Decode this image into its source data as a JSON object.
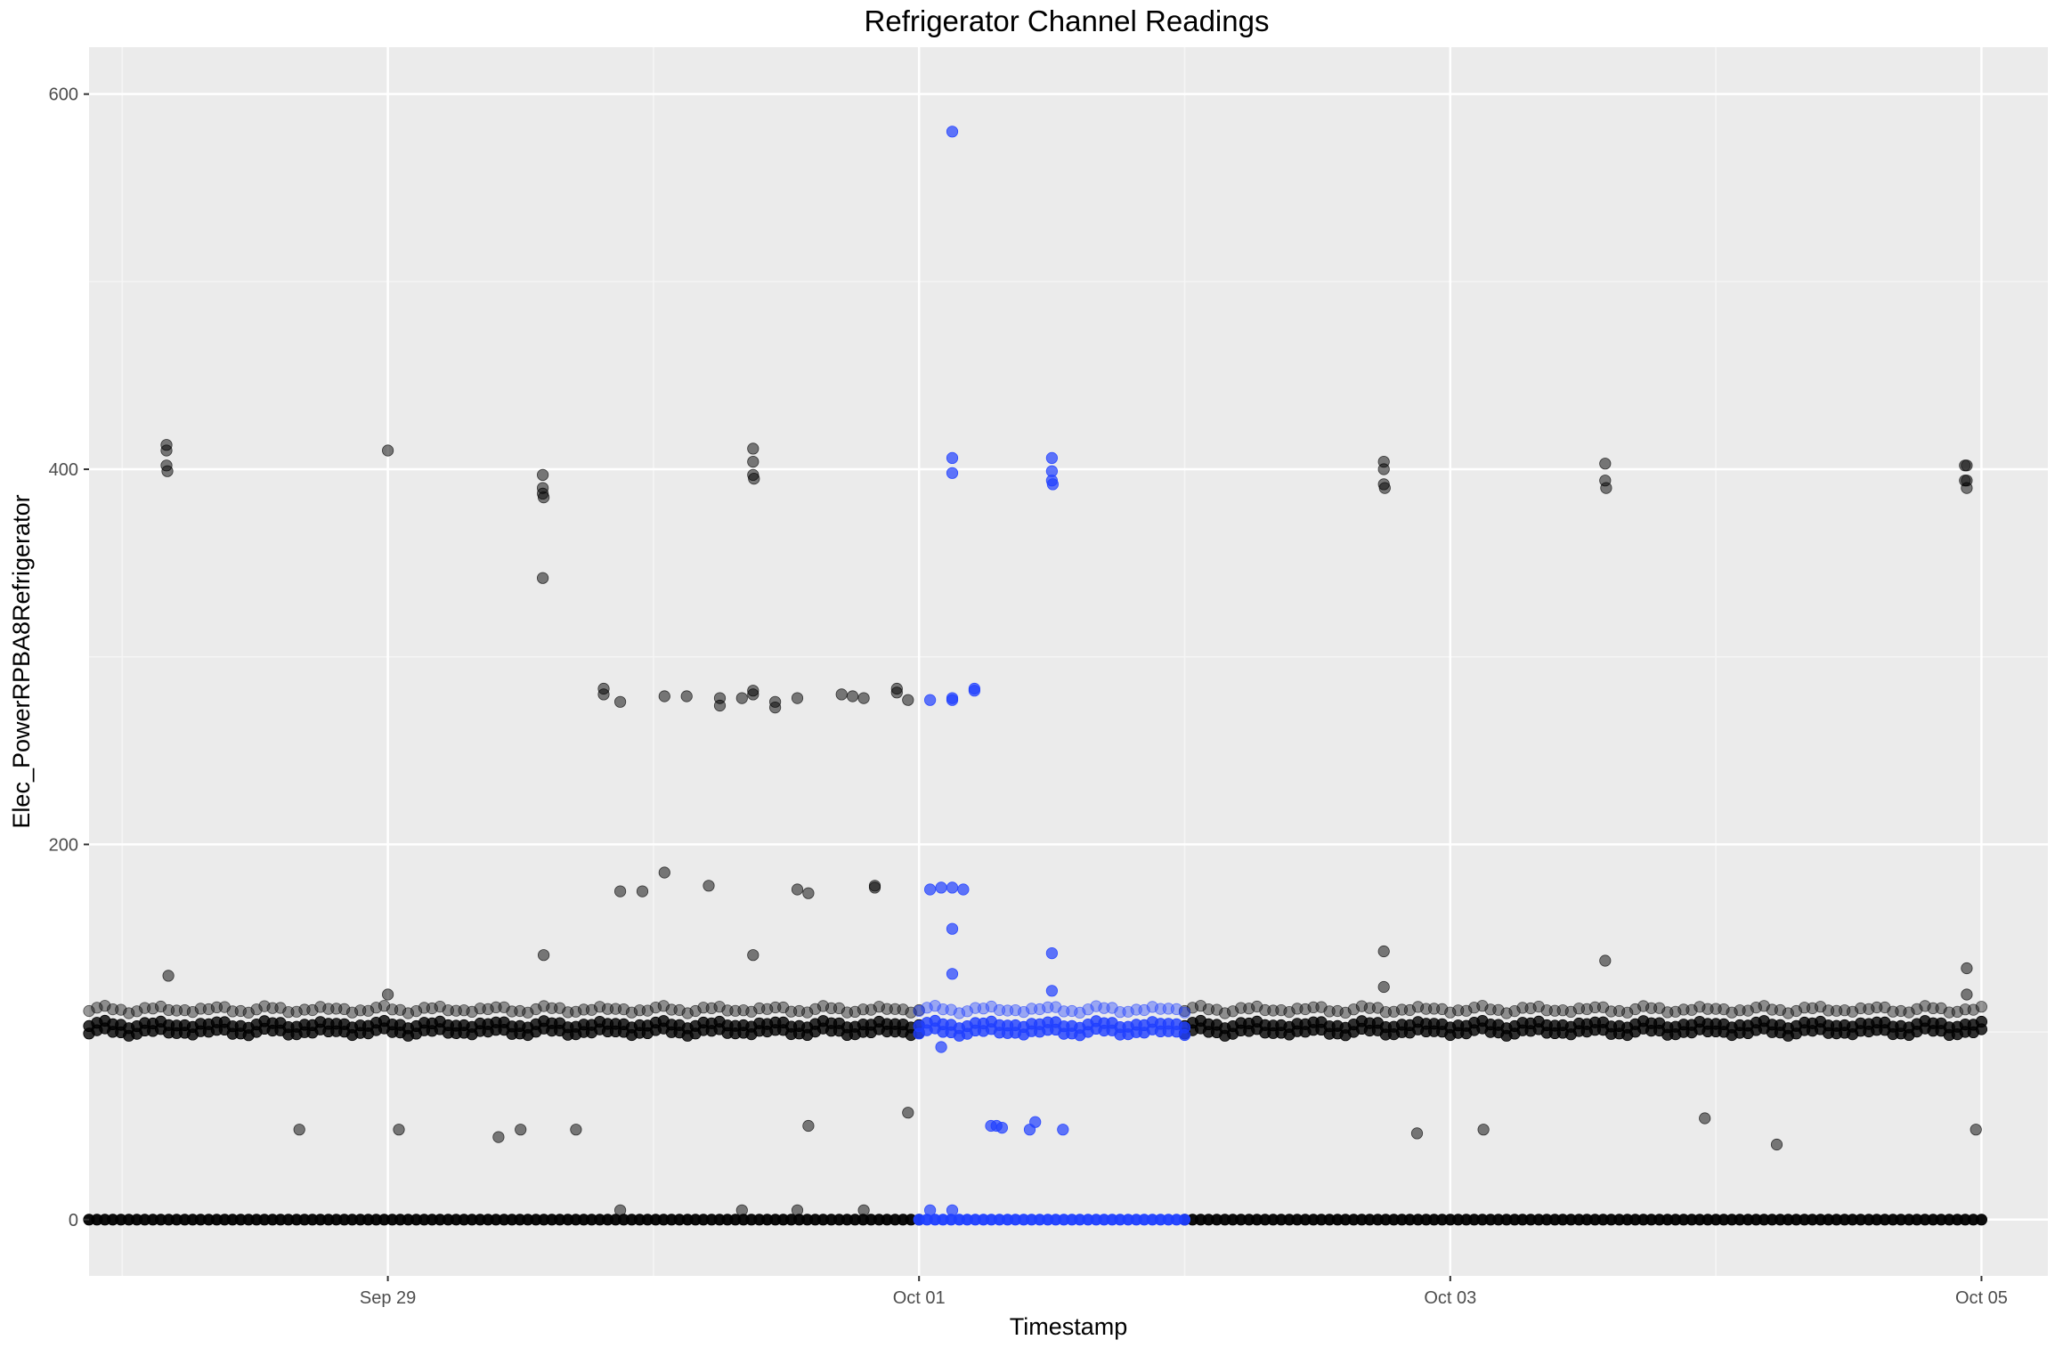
{
  "chart_data": {
    "type": "scatter",
    "title": "Refrigerator Channel Readings",
    "xlabel": "Timestamp",
    "ylabel": "Elec_PowerRPBA8Refrigerator",
    "xlim": [
      "2024-09-27T21:00",
      "2024-10-05T06:00"
    ],
    "ylim": [
      -30,
      625
    ],
    "y_ticks": [
      0,
      200,
      400,
      600
    ],
    "x_ticks": [
      {
        "label": "Sep 29",
        "x": "2024-09-29T00:00"
      },
      {
        "label": "Oct 01",
        "x": "2024-10-01T00:00"
      },
      {
        "label": "Oct 03",
        "x": "2024-10-03T00:00"
      },
      {
        "label": "Oct 05",
        "x": "2024-10-05T00:00"
      }
    ],
    "grid": true,
    "legend": "none",
    "colors": {
      "panel": "#ebebeb",
      "grid_major": "#ffffff",
      "grid_minor": "#f5f5f5",
      "other": "#000000",
      "highlight": "#1f3fff",
      "tick_text": "#4d4d4d"
    },
    "series": [
      {
        "group": "other",
        "color": "#000000",
        "points": [
          {
            "x": "2024-09-28T04:00",
            "y": 413
          },
          {
            "x": "2024-09-28T04:00",
            "y": 410
          },
          {
            "x": "2024-09-28T04:00",
            "y": 402
          },
          {
            "x": "2024-09-28T04:05",
            "y": 399
          },
          {
            "x": "2024-09-28T04:10",
            "y": 130
          },
          {
            "x": "2024-09-28T16:00",
            "y": 48
          },
          {
            "x": "2024-09-29T00:00",
            "y": 410
          },
          {
            "x": "2024-09-29T00:00",
            "y": 120
          },
          {
            "x": "2024-09-29T01:00",
            "y": 48
          },
          {
            "x": "2024-09-29T10:00",
            "y": 44
          },
          {
            "x": "2024-09-29T12:00",
            "y": 48
          },
          {
            "x": "2024-09-29T14:00",
            "y": 397
          },
          {
            "x": "2024-09-29T14:00",
            "y": 390
          },
          {
            "x": "2024-09-29T14:00",
            "y": 387
          },
          {
            "x": "2024-09-29T14:05",
            "y": 385
          },
          {
            "x": "2024-09-29T14:00",
            "y": 342
          },
          {
            "x": "2024-09-29T14:05",
            "y": 141
          },
          {
            "x": "2024-09-29T17:00",
            "y": 48
          },
          {
            "x": "2024-09-29T19:30",
            "y": 283
          },
          {
            "x": "2024-09-29T19:30",
            "y": 280
          },
          {
            "x": "2024-09-29T21:00",
            "y": 276
          },
          {
            "x": "2024-09-29T21:00",
            "y": 175
          },
          {
            "x": "2024-09-29T21:00",
            "y": 5
          },
          {
            "x": "2024-09-29T23:00",
            "y": 175
          },
          {
            "x": "2024-09-30T01:00",
            "y": 185
          },
          {
            "x": "2024-09-30T01:00",
            "y": 279
          },
          {
            "x": "2024-09-30T03:00",
            "y": 279
          },
          {
            "x": "2024-09-30T05:00",
            "y": 178
          },
          {
            "x": "2024-09-30T06:00",
            "y": 278
          },
          {
            "x": "2024-09-30T06:00",
            "y": 274
          },
          {
            "x": "2024-09-30T08:00",
            "y": 278
          },
          {
            "x": "2024-09-30T08:00",
            "y": 5
          },
          {
            "x": "2024-09-30T09:00",
            "y": 141
          },
          {
            "x": "2024-09-30T09:00",
            "y": 282
          },
          {
            "x": "2024-09-30T09:00",
            "y": 280
          },
          {
            "x": "2024-09-30T09:00",
            "y": 411
          },
          {
            "x": "2024-09-30T09:00",
            "y": 404
          },
          {
            "x": "2024-09-30T09:00",
            "y": 397
          },
          {
            "x": "2024-09-30T09:05",
            "y": 395
          },
          {
            "x": "2024-09-30T11:00",
            "y": 276
          },
          {
            "x": "2024-09-30T11:00",
            "y": 273
          },
          {
            "x": "2024-09-30T13:00",
            "y": 278
          },
          {
            "x": "2024-09-30T13:00",
            "y": 5
          },
          {
            "x": "2024-09-30T13:00",
            "y": 176
          },
          {
            "x": "2024-09-30T14:00",
            "y": 174
          },
          {
            "x": "2024-09-30T14:00",
            "y": 50
          },
          {
            "x": "2024-09-30T17:00",
            "y": 280
          },
          {
            "x": "2024-09-30T18:00",
            "y": 279
          },
          {
            "x": "2024-09-30T19:00",
            "y": 278
          },
          {
            "x": "2024-09-30T19:00",
            "y": 5
          },
          {
            "x": "2024-09-30T20:00",
            "y": 178
          },
          {
            "x": "2024-09-30T20:00",
            "y": 177
          },
          {
            "x": "2024-09-30T22:00",
            "y": 283
          },
          {
            "x": "2024-09-30T22:00",
            "y": 281
          },
          {
            "x": "2024-09-30T23:00",
            "y": 57
          },
          {
            "x": "2024-09-30T23:00",
            "y": 277
          },
          {
            "x": "2024-10-02T18:00",
            "y": 404
          },
          {
            "x": "2024-10-02T18:00",
            "y": 400
          },
          {
            "x": "2024-10-02T18:00",
            "y": 392
          },
          {
            "x": "2024-10-02T18:05",
            "y": 390
          },
          {
            "x": "2024-10-02T18:00",
            "y": 143
          },
          {
            "x": "2024-10-02T18:00",
            "y": 124
          },
          {
            "x": "2024-10-02T21:00",
            "y": 46
          },
          {
            "x": "2024-10-03T03:00",
            "y": 48
          },
          {
            "x": "2024-10-03T14:00",
            "y": 403
          },
          {
            "x": "2024-10-03T14:00",
            "y": 394
          },
          {
            "x": "2024-10-03T14:05",
            "y": 390
          },
          {
            "x": "2024-10-03T14:00",
            "y": 138
          },
          {
            "x": "2024-10-03T23:00",
            "y": 54
          },
          {
            "x": "2024-10-04T05:30",
            "y": 40
          },
          {
            "x": "2024-10-04T22:30",
            "y": 402
          },
          {
            "x": "2024-10-04T22:40",
            "y": 402
          },
          {
            "x": "2024-10-04T22:30",
            "y": 394
          },
          {
            "x": "2024-10-04T22:40",
            "y": 394
          },
          {
            "x": "2024-10-04T22:40",
            "y": 390
          },
          {
            "x": "2024-10-04T22:40",
            "y": 134
          },
          {
            "x": "2024-10-04T22:40",
            "y": 120
          },
          {
            "x": "2024-10-04T23:30",
            "y": 48
          }
        ],
        "baselines": [
          {
            "from": "2024-09-27T21:00",
            "to": "2024-10-01T00:00",
            "levels": [
              100,
              104,
              112
            ]
          },
          {
            "from": "2024-10-02T00:00",
            "to": "2024-10-05T00:00",
            "levels": [
              100,
              104,
              112
            ]
          },
          {
            "from": "2024-09-27T21:00",
            "to": "2024-10-01T00:00",
            "levels": [
              0
            ]
          },
          {
            "from": "2024-10-02T00:00",
            "to": "2024-10-05T00:00",
            "levels": [
              0
            ]
          }
        ]
      },
      {
        "group": "highlight",
        "color": "#1f3fff",
        "points": [
          {
            "x": "2024-10-01T03:00",
            "y": 580
          },
          {
            "x": "2024-10-01T03:00",
            "y": 406
          },
          {
            "x": "2024-10-01T03:00",
            "y": 398
          },
          {
            "x": "2024-10-01T01:00",
            "y": 277
          },
          {
            "x": "2024-10-01T03:00",
            "y": 278
          },
          {
            "x": "2024-10-01T03:00",
            "y": 277
          },
          {
            "x": "2024-10-01T05:00",
            "y": 283
          },
          {
            "x": "2024-10-01T05:00",
            "y": 282
          },
          {
            "x": "2024-10-01T01:00",
            "y": 176
          },
          {
            "x": "2024-10-01T02:00",
            "y": 177
          },
          {
            "x": "2024-10-01T03:00",
            "y": 177
          },
          {
            "x": "2024-10-01T04:00",
            "y": 176
          },
          {
            "x": "2024-10-01T03:00",
            "y": 155
          },
          {
            "x": "2024-10-01T03:00",
            "y": 131
          },
          {
            "x": "2024-10-01T02:00",
            "y": 92
          },
          {
            "x": "2024-10-01T06:30",
            "y": 50
          },
          {
            "x": "2024-10-01T07:00",
            "y": 50
          },
          {
            "x": "2024-10-01T07:30",
            "y": 49
          },
          {
            "x": "2024-10-01T10:00",
            "y": 48
          },
          {
            "x": "2024-10-01T10:30",
            "y": 52
          },
          {
            "x": "2024-10-01T12:00",
            "y": 406
          },
          {
            "x": "2024-10-01T12:00",
            "y": 399
          },
          {
            "x": "2024-10-01T12:00",
            "y": 394
          },
          {
            "x": "2024-10-01T12:05",
            "y": 392
          },
          {
            "x": "2024-10-01T12:00",
            "y": 142
          },
          {
            "x": "2024-10-01T12:00",
            "y": 122
          },
          {
            "x": "2024-10-01T13:00",
            "y": 48
          },
          {
            "x": "2024-10-01T01:00",
            "y": 5
          },
          {
            "x": "2024-10-01T03:00",
            "y": 5
          }
        ],
        "baselines": [
          {
            "from": "2024-10-01T00:00",
            "to": "2024-10-02T00:00",
            "levels": [
              100,
              104,
              112
            ]
          },
          {
            "from": "2024-10-01T00:00",
            "to": "2024-10-02T00:00",
            "levels": [
              0
            ]
          }
        ]
      }
    ]
  }
}
